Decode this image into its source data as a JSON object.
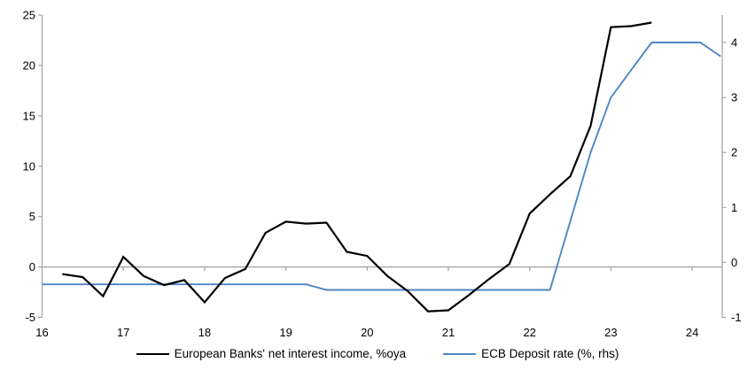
{
  "chart_data": {
    "type": "line",
    "title": "",
    "grid": "zero-line-only",
    "legend_position": "bottom",
    "x_axis": {
      "ticks": [
        16,
        17,
        18,
        19,
        20,
        21,
        22,
        23,
        24
      ],
      "range": [
        16,
        24.37
      ]
    },
    "left_axis": {
      "ticks": [
        25,
        20,
        15,
        10,
        5,
        0,
        -5
      ],
      "range": [
        -5,
        25
      ]
    },
    "right_axis": {
      "ticks": [
        4,
        3,
        2,
        1,
        0,
        -1
      ],
      "range": [
        -1,
        4.5
      ]
    },
    "series": [
      {
        "name": "European Banks' net interest income, %oya",
        "axis": "left",
        "color": "#000000",
        "width": 2.2,
        "x": [
          16.25,
          16.5,
          16.75,
          17,
          17.25,
          17.5,
          17.75,
          18,
          18.25,
          18.5,
          18.75,
          19,
          19.25,
          19.5,
          19.75,
          20,
          20.25,
          20.5,
          20.75,
          21,
          21.25,
          21.5,
          21.75,
          22,
          22.25,
          22.5,
          22.75,
          23,
          23.25,
          23.5
        ],
        "values": [
          -0.7,
          -1.0,
          -2.9,
          1.0,
          -0.9,
          -1.8,
          -1.3,
          -3.5,
          -1.1,
          -0.2,
          3.4,
          4.5,
          4.3,
          4.4,
          1.5,
          1.1,
          -0.9,
          -2.4,
          -4.4,
          -4.3,
          -2.8,
          -1.2,
          0.3,
          5.3,
          7.2,
          9.0,
          14.0,
          23.8,
          23.9,
          24.25
        ]
      },
      {
        "name": "ECB Deposit rate (%, rhs)",
        "axis": "right",
        "color": "#4d86c3",
        "width": 1.9,
        "x": [
          16.0,
          19.25,
          19.5,
          22.25,
          22.5,
          22.75,
          23.0,
          23.25,
          23.5,
          24.1,
          24.35
        ],
        "values": [
          -0.4,
          -0.4,
          -0.5,
          -0.5,
          0.75,
          2.0,
          3.0,
          3.5,
          4.0,
          4.0,
          3.75
        ]
      }
    ]
  },
  "legend": {
    "series1": "European Banks' net interest income, %oya",
    "series2": "ECB Deposit rate (%, rhs)"
  },
  "colors": {
    "black_line": "#000000",
    "blue_line": "#4d86c3",
    "axis_gray": "#a6a6a6",
    "text": "#000000",
    "background": "#ffffff"
  }
}
